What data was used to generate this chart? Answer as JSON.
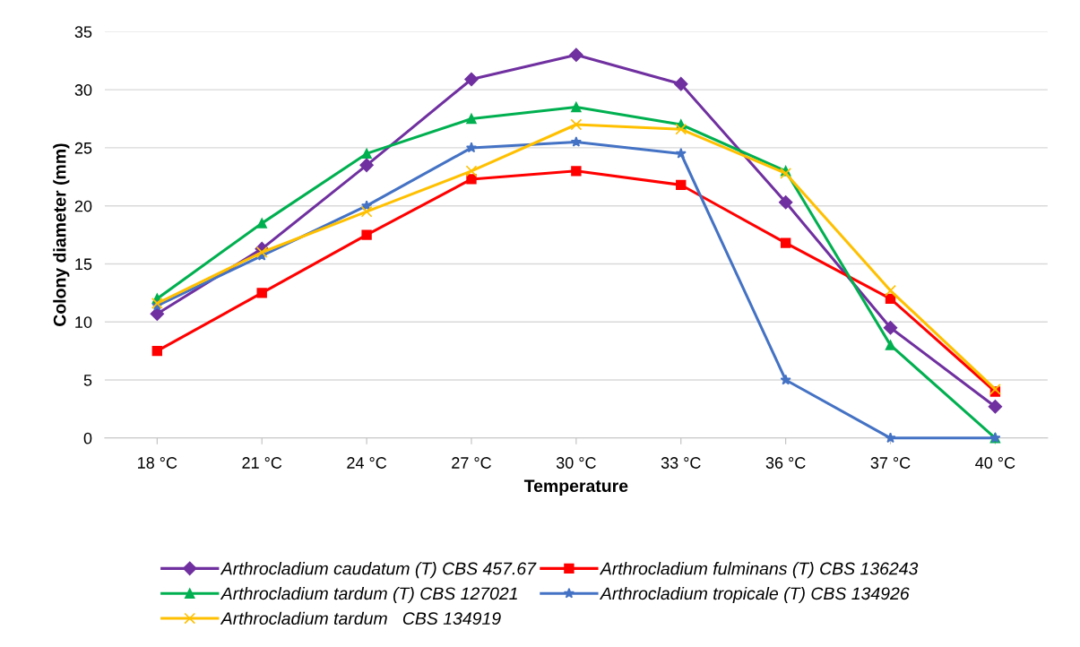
{
  "chart_data": {
    "type": "line",
    "xlabel": "Temperature",
    "ylabel": "Colony diameter (mm)",
    "categories": [
      "18 °C",
      "21 °C",
      "24 °C",
      "27 °C",
      "30 °C",
      "33 °C",
      "36 °C",
      "37 °C",
      "40 °C"
    ],
    "ylim": [
      0,
      35
    ],
    "yticks": [
      0,
      5,
      10,
      15,
      20,
      25,
      30,
      35
    ],
    "grid": "y",
    "legend": "bottom",
    "line_style": "solid",
    "series": [
      {
        "name": "Arthrocladium caudatum (T) CBS 457.67",
        "color": "#7030a0",
        "marker": "diamond",
        "values": [
          10.7,
          16.3,
          23.5,
          30.9,
          33.0,
          30.5,
          20.3,
          9.5,
          2.7
        ]
      },
      {
        "name": "Arthrocladium fulminans (T) CBS 136243",
        "color": "#ff0000",
        "marker": "square",
        "values": [
          7.5,
          12.5,
          17.5,
          22.3,
          23.0,
          21.8,
          16.8,
          12.0,
          4.0
        ]
      },
      {
        "name": "Arthrocladium tardum (T) CBS 127021",
        "color": "#00b050",
        "marker": "triangle",
        "values": [
          12.0,
          18.5,
          24.5,
          27.5,
          28.5,
          27.0,
          23.0,
          8.0,
          0
        ]
      },
      {
        "name": "Arthrocladium tropicale (T) CBS 134926",
        "color": "#4472c4",
        "marker": "star",
        "values": [
          11.4,
          15.7,
          20.0,
          25.0,
          25.5,
          24.5,
          5.0,
          0,
          0
        ]
      },
      {
        "name": "Arthrocladium tardum   CBS 134919",
        "color": "#ffc000",
        "marker": "cross",
        "values": [
          11.6,
          16.0,
          19.5,
          23.0,
          27.0,
          26.6,
          22.8,
          12.7,
          4.2
        ]
      }
    ]
  }
}
